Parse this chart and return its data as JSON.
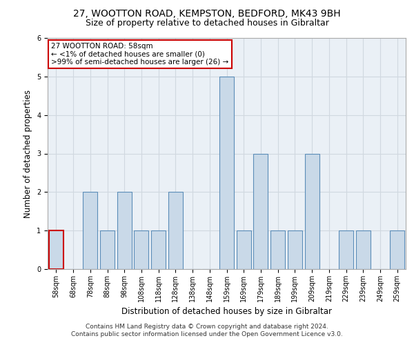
{
  "title_line1": "27, WOOTTON ROAD, KEMPSTON, BEDFORD, MK43 9BH",
  "title_line2": "Size of property relative to detached houses in Gibraltar",
  "xlabel": "Distribution of detached houses by size in Gibraltar",
  "ylabel": "Number of detached properties",
  "footnote_line1": "Contains HM Land Registry data © Crown copyright and database right 2024.",
  "footnote_line2": "Contains public sector information licensed under the Open Government Licence v3.0.",
  "categories": [
    "58sqm",
    "68sqm",
    "78sqm",
    "88sqm",
    "98sqm",
    "108sqm",
    "118sqm",
    "128sqm",
    "138sqm",
    "148sqm",
    "159sqm",
    "169sqm",
    "179sqm",
    "189sqm",
    "199sqm",
    "209sqm",
    "219sqm",
    "229sqm",
    "239sqm",
    "249sqm",
    "259sqm"
  ],
  "values": [
    1,
    0,
    2,
    1,
    2,
    1,
    1,
    2,
    0,
    0,
    5,
    1,
    3,
    1,
    1,
    3,
    0,
    1,
    1,
    0,
    1
  ],
  "highlight_index": 0,
  "bar_color": "#c9d9e8",
  "bar_edge_color": "#5b8db8",
  "highlight_bar_edge_color": "#cc0000",
  "annotation_box_text": "27 WOOTTON ROAD: 58sqm\n← <1% of detached houses are smaller (0)\n>99% of semi-detached houses are larger (26) →",
  "annotation_box_color": "#ffffff",
  "annotation_box_edge_color": "#cc0000",
  "ylim": [
    0,
    6
  ],
  "yticks": [
    0,
    1,
    2,
    3,
    4,
    5,
    6
  ],
  "grid_color": "#d0d8e0",
  "bg_color": "#eaf0f6",
  "title1_fontsize": 10,
  "title2_fontsize": 9,
  "xlabel_fontsize": 8.5,
  "ylabel_fontsize": 8.5,
  "tick_fontsize": 7,
  "annotation_fontsize": 7.5,
  "footnote_fontsize": 6.5
}
